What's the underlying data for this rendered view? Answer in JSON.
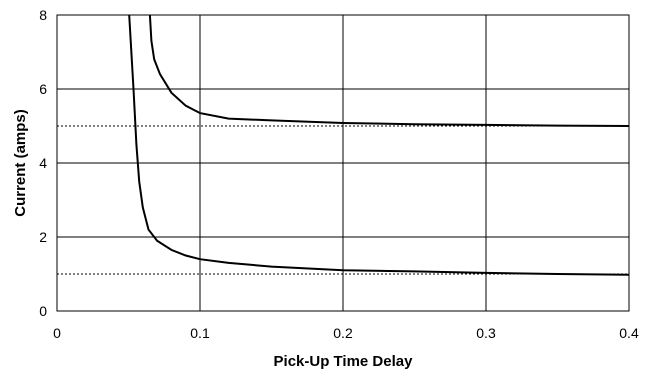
{
  "chart_data": {
    "type": "line",
    "title": "",
    "xlabel": "Pick-Up Time Delay",
    "ylabel": "Current (amps)",
    "xlim": [
      0,
      0.4
    ],
    "ylim": [
      0,
      8
    ],
    "x_ticks": [
      0,
      0.1,
      0.2,
      0.3,
      0.4
    ],
    "x_tick_labels": [
      "0",
      "0.1",
      "0.2",
      "0.3",
      "0.4"
    ],
    "y_ticks": [
      0,
      2,
      4,
      6,
      8
    ],
    "y_tick_labels": [
      "0",
      "2",
      "4",
      "6",
      "8"
    ],
    "grid": true,
    "legend": "none",
    "series": [
      {
        "points": [
          [
            0.0505,
            8.0
          ],
          [
            0.0535,
            6.0
          ],
          [
            0.0555,
            4.5
          ],
          [
            0.0575,
            3.5
          ],
          [
            0.06,
            2.8
          ],
          [
            0.064,
            2.2
          ],
          [
            0.07,
            1.9
          ],
          [
            0.08,
            1.65
          ],
          [
            0.09,
            1.5
          ],
          [
            0.1,
            1.4
          ],
          [
            0.12,
            1.3
          ],
          [
            0.15,
            1.2
          ],
          [
            0.2,
            1.1
          ],
          [
            0.25,
            1.07
          ],
          [
            0.3,
            1.03
          ],
          [
            0.35,
            1.0
          ],
          [
            0.4,
            0.98
          ]
        ]
      },
      {
        "points": [
          [
            0.065,
            8.0
          ],
          [
            0.066,
            7.3
          ],
          [
            0.068,
            6.8
          ],
          [
            0.072,
            6.4
          ],
          [
            0.08,
            5.9
          ],
          [
            0.09,
            5.55
          ],
          [
            0.1,
            5.35
          ],
          [
            0.12,
            5.2
          ],
          [
            0.15,
            5.15
          ],
          [
            0.2,
            5.08
          ],
          [
            0.25,
            5.05
          ],
          [
            0.3,
            5.03
          ],
          [
            0.35,
            5.01
          ],
          [
            0.4,
            5.0
          ]
        ]
      }
    ],
    "reference_lines": [
      {
        "y": 1.0,
        "style": "dotted"
      },
      {
        "y": 5.0,
        "style": "dotted"
      }
    ]
  }
}
